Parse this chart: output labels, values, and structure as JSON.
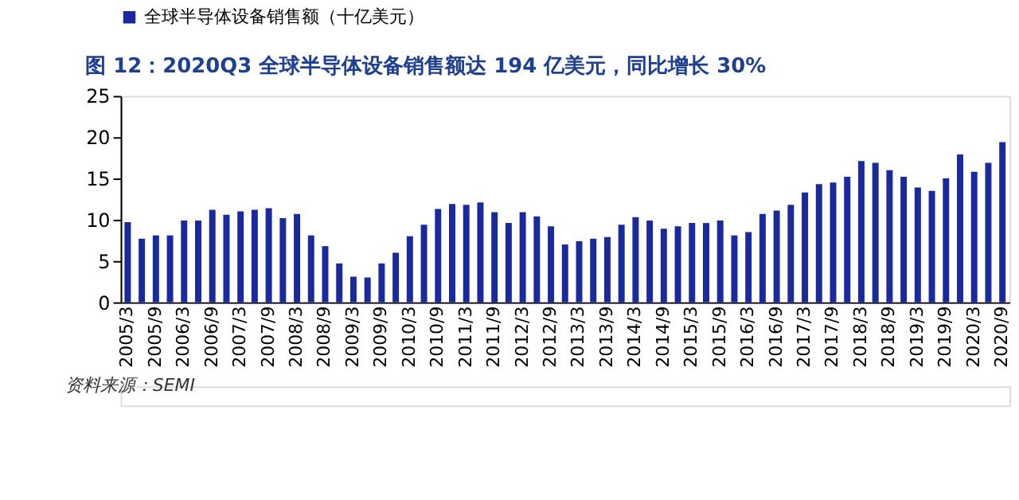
{
  "chart_data": {
    "type": "bar",
    "title": "图 12：2020Q3 全球半导体设备销售额达 194 亿美元，同比增长 30%",
    "categories": [
      "2005/3",
      null,
      "2005/9",
      null,
      "2006/3",
      null,
      "2006/9",
      null,
      "2007/3",
      null,
      "2007/9",
      null,
      "2008/3",
      null,
      "2008/9",
      null,
      "2009/3",
      null,
      "2009/9",
      null,
      "2010/3",
      null,
      "2010/9",
      null,
      "2011/3",
      null,
      "2011/9",
      null,
      "2012/3",
      null,
      "2012/9",
      null,
      "2013/3",
      null,
      "2013/9",
      null,
      "2014/3",
      null,
      "2014/9",
      null,
      "2015/3",
      null,
      "2015/9",
      null,
      "2016/3",
      null,
      "2016/9",
      null,
      "2017/3",
      null,
      "2017/9",
      null,
      "2018/3",
      null,
      "2018/9",
      null,
      "2019/3",
      null,
      "2019/9",
      null,
      "2020/3",
      null,
      "2020/9"
    ],
    "series": [
      {
        "name": "全球半导体设备销售额（十亿美元）",
        "color": "#1a2a9c",
        "values": [
          9.7,
          7.7,
          8.1,
          8.1,
          9.9,
          9.9,
          11.2,
          10.6,
          11.0,
          11.2,
          11.4,
          10.2,
          10.7,
          8.1,
          6.8,
          4.7,
          3.1,
          3.0,
          4.7,
          6.0,
          8.0,
          9.4,
          11.3,
          11.9,
          11.8,
          12.1,
          10.9,
          9.6,
          10.9,
          10.4,
          9.2,
          7.0,
          7.4,
          7.7,
          7.9,
          9.4,
          10.3,
          9.9,
          8.9,
          9.2,
          9.6,
          9.6,
          9.9,
          8.1,
          8.5,
          10.7,
          11.1,
          11.8,
          13.3,
          14.3,
          14.5,
          15.2,
          17.1,
          16.9,
          16.0,
          15.2,
          13.9,
          13.5,
          15.0,
          17.9,
          15.8,
          16.9,
          19.4
        ]
      }
    ],
    "ylim": [
      0,
      25
    ],
    "yticks": [
      0,
      5,
      10,
      15,
      20,
      25
    ],
    "grid": false,
    "legend": "top",
    "annotations": [
      "资料来源：SEMI"
    ]
  }
}
